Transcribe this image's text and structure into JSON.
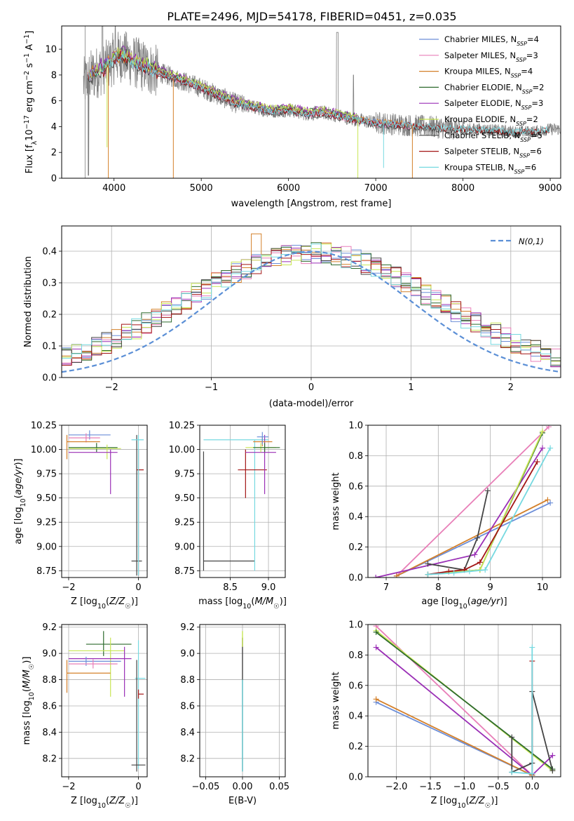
{
  "title": "PLATE=2496, MJD=54178, FIBERID=0451, z=0.035",
  "colors": {
    "Chabrier MILES": "#6c8ed8",
    "Salpeter MILES": "#e87fb8",
    "Kroupa MILES": "#d4802a",
    "Chabrier ELODIE": "#2e6b2e",
    "Salpeter ELODIE": "#9a2fb6",
    "Kroupa ELODIE": "#c8e655",
    "Chabrier STELIB": "#444444",
    "Salpeter STELIB": "#a31515",
    "Kroupa STELIB": "#76d9e0",
    "data": "#808080",
    "normal": "#5b8fd6",
    "grid": "#b0b0b0"
  },
  "chart_data": [
    {
      "id": "spectrum",
      "type": "line",
      "xlabel": "wavelength [Angstrom, rest frame]",
      "ylabel": "Flux [f_λ 10^-17 erg cm^-2 s^-1 A^-1]",
      "xlim": [
        3400,
        9120
      ],
      "ylim": [
        0,
        11.8
      ],
      "xticks": [
        4000,
        5000,
        6000,
        7000,
        8000,
        9000
      ],
      "yticks": [
        0,
        2,
        4,
        6,
        8,
        10
      ],
      "grid": false,
      "legend_position": "top-right",
      "legend": [
        {
          "name": "Chabrier MILES",
          "nssp": "4"
        },
        {
          "name": "Salpeter MILES",
          "nssp": "3"
        },
        {
          "name": "Kroupa MILES",
          "nssp": "4"
        },
        {
          "name": "Chabrier ELODIE",
          "nssp": "2"
        },
        {
          "name": "Salpeter ELODIE",
          "nssp": "3"
        },
        {
          "name": "Kroupa ELODIE",
          "nssp": "2"
        },
        {
          "name": "Chabrier STELIB",
          "nssp": "5"
        },
        {
          "name": "Salpeter STELIB",
          "nssp": "6"
        },
        {
          "name": "Kroupa STELIB",
          "nssp": "6"
        }
      ],
      "continuum": {
        "x": [
          3650,
          3700,
          3800,
          3900,
          4000,
          4100,
          4200,
          4400,
          4600,
          4800,
          5000,
          5200,
          5400,
          5600,
          5800,
          6000,
          6200,
          6400,
          6600,
          6800,
          7000,
          7200,
          7400,
          7600,
          7800,
          8000,
          8200,
          8400,
          8600,
          8800,
          9000
        ],
        "y": [
          7.3,
          7.8,
          8.2,
          8.6,
          9.3,
          9.5,
          9.1,
          8.5,
          8.0,
          7.5,
          7.0,
          6.4,
          5.8,
          5.5,
          5.2,
          5.3,
          5.0,
          5.1,
          4.8,
          4.5,
          4.3,
          4.2,
          4.1,
          4.0,
          3.9,
          3.8,
          3.8,
          3.7,
          3.6,
          3.6,
          3.8
        ]
      }
    },
    {
      "id": "residuals",
      "type": "histogram",
      "xlabel": "(data-model)/error",
      "ylabel": "Normed distribution",
      "xlim": [
        -2.5,
        2.5
      ],
      "ylim": [
        0,
        0.48
      ],
      "xticks": [
        -2,
        -1,
        0,
        1,
        2
      ],
      "yticks": [
        0.0,
        0.1,
        0.2,
        0.3,
        0.4
      ],
      "grid": true,
      "legend_label": "N(0,1)",
      "legend_position": "top-right",
      "bin_width": 0.1
    },
    {
      "id": "age-vs-Z",
      "type": "scatter",
      "xlabel": "Z [log10(Z/Z☉)]",
      "ylabel": "age  [log10(age/yr)]",
      "xlim": [
        -2.2,
        0.25
      ],
      "ylim": [
        8.68,
        10.25
      ],
      "xticks": [
        -2,
        0
      ],
      "yticks": [
        8.75,
        9.0,
        9.25,
        9.5,
        9.75,
        10.0,
        10.25
      ],
      "grid": true,
      "errorbars": [
        {
          "series": "Chabrier MILES",
          "x": [
            -2.0,
            -0.8
          ],
          "y": [
            10.15,
            10.15
          ],
          "xc": -1.4,
          "yc": 10.15
        },
        {
          "series": "Salpeter MILES",
          "x": [
            -2.0,
            -1.1
          ],
          "y": [
            10.12,
            10.12
          ],
          "xc": -1.5,
          "yc": 10.12
        },
        {
          "series": "Kroupa MILES",
          "x": [
            -2.05,
            -1.1
          ],
          "y": [
            10.08,
            10.08
          ],
          "xc": -2.05,
          "yc": 10.08,
          "ylo": 9.9,
          "yhi": 10.15
        },
        {
          "series": "Chabrier ELODIE",
          "x": [
            -2.0,
            -0.6
          ],
          "y": [
            10.02,
            10.02
          ],
          "xc": -1.2,
          "yc": 10.02
        },
        {
          "series": "Kroupa ELODIE",
          "x": [
            -2.0,
            -0.5
          ],
          "y": [
            10.01,
            10.01
          ],
          "xc": -0.9,
          "yc": 10.01,
          "ylo": 9.9,
          "yhi": 10.05
        },
        {
          "series": "Salpeter ELODIE",
          "x": [
            -2.0,
            -0.6
          ],
          "y": [
            9.97,
            9.97
          ],
          "xc": -0.8,
          "yc": 9.97,
          "ylo": 9.54,
          "yhi": 10.0
        },
        {
          "series": "Chabrier STELIB",
          "x": [
            -0.2,
            0.1
          ],
          "y": [
            8.85,
            8.85
          ],
          "xc": -0.05,
          "yc": 8.85,
          "ylo": 8.7,
          "yhi": 10.15
        },
        {
          "series": "Salpeter STELIB",
          "x": [
            -0.05,
            0.15
          ],
          "y": [
            9.79,
            9.79
          ],
          "xc": 0.0,
          "yc": 9.79,
          "ylo": 8.7,
          "yhi": 10.0
        },
        {
          "series": "Kroupa STELIB",
          "x": [
            -0.2,
            0.15
          ],
          "y": [
            10.1,
            10.1
          ],
          "xc": 0.0,
          "yc": 10.1,
          "ylo": 8.7,
          "yhi": 10.15
        }
      ]
    },
    {
      "id": "age-vs-mass",
      "type": "scatter",
      "xlabel": "mass [log10(M/M☉)]",
      "ylabel": "",
      "xlim": [
        8.1,
        9.22
      ],
      "ylim": [
        8.68,
        10.25
      ],
      "xticks": [
        8.5,
        9.0
      ],
      "yticks": [
        8.75,
        9.0,
        9.25,
        9.5,
        9.75,
        10.0,
        10.25
      ],
      "grid": true,
      "errorbars": [
        {
          "series": "Chabrier STELIB",
          "x": [
            8.15,
            8.82
          ],
          "y": [
            8.85,
            8.85
          ],
          "xc": 8.15,
          "yc": 8.85,
          "ylo": 8.75,
          "yhi": 9.98
        },
        {
          "series": "Kroupa STELIB",
          "x": [
            8.15,
            9.0
          ],
          "y": [
            10.1,
            10.1
          ],
          "xc": 8.82,
          "yc": 10.1,
          "ylo": 8.75,
          "yhi": 10.1
        },
        {
          "series": "Salpeter STELIB",
          "x": [
            8.6,
            8.98
          ],
          "y": [
            9.79,
            9.79
          ],
          "xc": 8.7,
          "yc": 9.79,
          "ylo": 9.5,
          "yhi": 10.0
        },
        {
          "series": "Salpeter ELODIE",
          "x": [
            8.7,
            9.1
          ],
          "y": [
            9.97,
            9.97
          ],
          "xc": 8.95,
          "yc": 9.97,
          "ylo": 9.54,
          "yhi": 10.15
        },
        {
          "series": "Kroupa ELODIE",
          "x": [
            8.7,
            9.1
          ],
          "y": [
            10.02,
            10.02
          ],
          "xc": 8.9,
          "yc": 10.02
        },
        {
          "series": "Chabrier ELODIE",
          "x": [
            8.8,
            9.15
          ],
          "y": [
            10.02,
            10.02
          ],
          "xc": 8.95,
          "yc": 10.02
        },
        {
          "series": "Kroupa MILES",
          "x": [
            8.8,
            9.05
          ],
          "y": [
            10.08,
            10.08
          ],
          "xc": 8.92,
          "yc": 10.08
        },
        {
          "series": "Chabrier MILES",
          "x": [
            8.85,
            9.0
          ],
          "y": [
            10.13,
            10.13
          ],
          "xc": 8.92,
          "yc": 10.13,
          "ylo": 10.05,
          "yhi": 10.18
        }
      ]
    },
    {
      "id": "mass-weight-vs-age",
      "type": "line",
      "xlabel": "age  [log10(age/yr)]",
      "ylabel": "mass weight",
      "xlim": [
        6.65,
        10.35
      ],
      "ylim": [
        0,
        1.0
      ],
      "xticks": [
        7,
        8,
        9,
        10
      ],
      "yticks": [
        0.0,
        0.2,
        0.4,
        0.6,
        0.8,
        1.0
      ],
      "grid": true,
      "series": [
        {
          "name": "Salpeter MILES",
          "x": [
            7.2,
            10.12
          ],
          "y": [
            0.01,
            0.99
          ]
        },
        {
          "name": "Chabrier MILES",
          "x": [
            7.2,
            10.15
          ],
          "y": [
            0.01,
            0.49
          ]
        },
        {
          "name": "Kroupa MILES",
          "x": [
            7.2,
            10.1
          ],
          "y": [
            0.01,
            0.51
          ]
        },
        {
          "name": "Salpeter ELODIE",
          "x": [
            6.8,
            8.7,
            10.0
          ],
          "y": [
            0.0,
            0.15,
            0.85
          ]
        },
        {
          "name": "Chabrier ELODIE",
          "x": [
            7.8,
            8.8,
            10.0
          ],
          "y": [
            0.02,
            0.05,
            0.95
          ]
        },
        {
          "name": "Kroupa ELODIE",
          "x": [
            7.8,
            8.8,
            10.0
          ],
          "y": [
            0.02,
            0.05,
            0.96
          ]
        },
        {
          "name": "Chabrier STELIB",
          "x": [
            7.8,
            8.5,
            8.75,
            8.95
          ],
          "y": [
            0.09,
            0.05,
            0.26,
            0.57
          ]
        },
        {
          "name": "Salpeter STELIB",
          "x": [
            7.8,
            8.2,
            8.5,
            8.8,
            9.9
          ],
          "y": [
            0.02,
            0.04,
            0.05,
            0.1,
            0.76
          ]
        },
        {
          "name": "Kroupa STELIB",
          "x": [
            7.8,
            8.3,
            8.6,
            8.9,
            10.15
          ],
          "y": [
            0.02,
            0.03,
            0.04,
            0.05,
            0.85
          ]
        }
      ]
    },
    {
      "id": "mass-vs-Z",
      "type": "scatter",
      "xlabel": "Z [log10(Z/Z☉)]",
      "ylabel": "mass [log10(M/M☉)]",
      "xlim": [
        -2.2,
        0.25
      ],
      "ylim": [
        8.06,
        9.22
      ],
      "xticks": [
        -2,
        0
      ],
      "yticks": [
        8.2,
        8.4,
        8.6,
        8.8,
        9.0,
        9.2
      ],
      "grid": true,
      "errorbars": [
        {
          "series": "Chabrier ELODIE",
          "x": [
            -1.5,
            -0.2
          ],
          "y": [
            9.07,
            9.07
          ],
          "xc": -1.0,
          "yc": 9.07,
          "ylo": 8.98,
          "yhi": 9.17
        },
        {
          "series": "Kroupa ELODIE",
          "x": [
            -2.0,
            -0.4
          ],
          "y": [
            9.02,
            9.02
          ],
          "xc": -0.8,
          "yc": 9.02,
          "ylo": 8.67,
          "yhi": 9.12
        },
        {
          "series": "Salpeter ELODIE",
          "x": [
            -2.0,
            -0.2
          ],
          "y": [
            8.96,
            8.96
          ],
          "xc": -0.4,
          "yc": 8.96,
          "ylo": 8.67,
          "yhi": 9.05
        },
        {
          "series": "Chabrier MILES",
          "x": [
            -2.0,
            -0.5
          ],
          "y": [
            8.94,
            8.94
          ],
          "xc": -1.5,
          "yc": 8.94
        },
        {
          "series": "Salpeter MILES",
          "x": [
            -2.0,
            -0.6
          ],
          "y": [
            8.92,
            8.92
          ],
          "xc": -1.3,
          "yc": 8.92
        },
        {
          "series": "Kroupa MILES",
          "x": [
            -2.05,
            -0.8
          ],
          "y": [
            8.85,
            8.85
          ],
          "xc": -2.05,
          "yc": 8.85,
          "ylo": 8.7,
          "yhi": 8.95
        },
        {
          "series": "Kroupa STELIB",
          "x": [
            -0.1,
            0.2
          ],
          "y": [
            8.81,
            8.81
          ],
          "xc": 0.0,
          "yc": 8.81,
          "ylo": 8.12,
          "yhi": 9.1
        },
        {
          "series": "Salpeter STELIB",
          "x": [
            0.0,
            0.15
          ],
          "y": [
            8.69,
            8.69
          ],
          "xc": 0.0,
          "yc": 8.69
        },
        {
          "series": "Chabrier STELIB",
          "x": [
            -0.2,
            0.2
          ],
          "y": [
            8.15,
            8.15
          ],
          "xc": -0.05,
          "yc": 8.15,
          "ylo": 8.1,
          "yhi": 8.95
        }
      ]
    },
    {
      "id": "mass-vs-ebv",
      "type": "scatter",
      "xlabel": "E(B-V)",
      "ylabel": "",
      "xlim": [
        -0.058,
        0.058
      ],
      "ylim": [
        8.06,
        9.22
      ],
      "xticks": [
        -0.05,
        0.0,
        0.05
      ],
      "yticks": [
        8.2,
        8.4,
        8.6,
        8.8,
        9.0,
        9.2
      ],
      "grid": true,
      "vertical_bars": [
        {
          "series": "Chabrier STELIB",
          "x": 0.0,
          "ylo": 8.1,
          "yhi": 9.12
        },
        {
          "series": "Kroupa ELODIE",
          "x": 0.0,
          "ylo": 9.05,
          "yhi": 9.17
        },
        {
          "series": "Kroupa STELIB",
          "x": 0.0,
          "ylo": 8.1,
          "yhi": 8.8
        }
      ]
    },
    {
      "id": "mass-weight-vs-Z",
      "type": "line",
      "xlabel": "Z [log10(Z/Z☉)]",
      "ylabel": "mass weight",
      "xlim": [
        -2.42,
        0.42
      ],
      "ylim": [
        0,
        1.0
      ],
      "xticks": [
        -2.0,
        -1.5,
        -1.0,
        -0.5,
        0.0
      ],
      "yticks": [
        0.0,
        0.2,
        0.4,
        0.6,
        0.8,
        1.0
      ],
      "grid": true,
      "series": [
        {
          "name": "Salpeter MILES",
          "x": [
            -2.3,
            0.0
          ],
          "y": [
            0.99,
            0.01
          ]
        },
        {
          "name": "Kroupa ELODIE",
          "x": [
            -2.3,
            0.3
          ],
          "y": [
            0.96,
            0.04
          ]
        },
        {
          "name": "Chabrier ELODIE",
          "x": [
            -2.3,
            0.3
          ],
          "y": [
            0.95,
            0.05
          ]
        },
        {
          "name": "Salpeter ELODIE",
          "x": [
            -2.3,
            0.0,
            0.3
          ],
          "y": [
            0.85,
            0.01,
            0.14
          ]
        },
        {
          "name": "Chabrier MILES",
          "x": [
            -2.3,
            0.0
          ],
          "y": [
            0.49,
            0.01
          ]
        },
        {
          "name": "Kroupa MILES",
          "x": [
            -2.3,
            0.0
          ],
          "y": [
            0.51,
            0.01
          ]
        },
        {
          "name": "Chabrier STELIB",
          "x": [
            -0.3,
            -0.3,
            0.0,
            0.0,
            0.3
          ],
          "y": [
            0.26,
            0.03,
            0.09,
            0.56,
            0.04
          ]
        },
        {
          "name": "Salpeter STELIB",
          "x": [
            0.0,
            0.0
          ],
          "y": [
            0.02,
            0.76
          ]
        },
        {
          "name": "Kroupa STELIB",
          "x": [
            -0.3,
            0.0,
            0.0
          ],
          "y": [
            0.03,
            0.02,
            0.85
          ]
        }
      ]
    }
  ]
}
